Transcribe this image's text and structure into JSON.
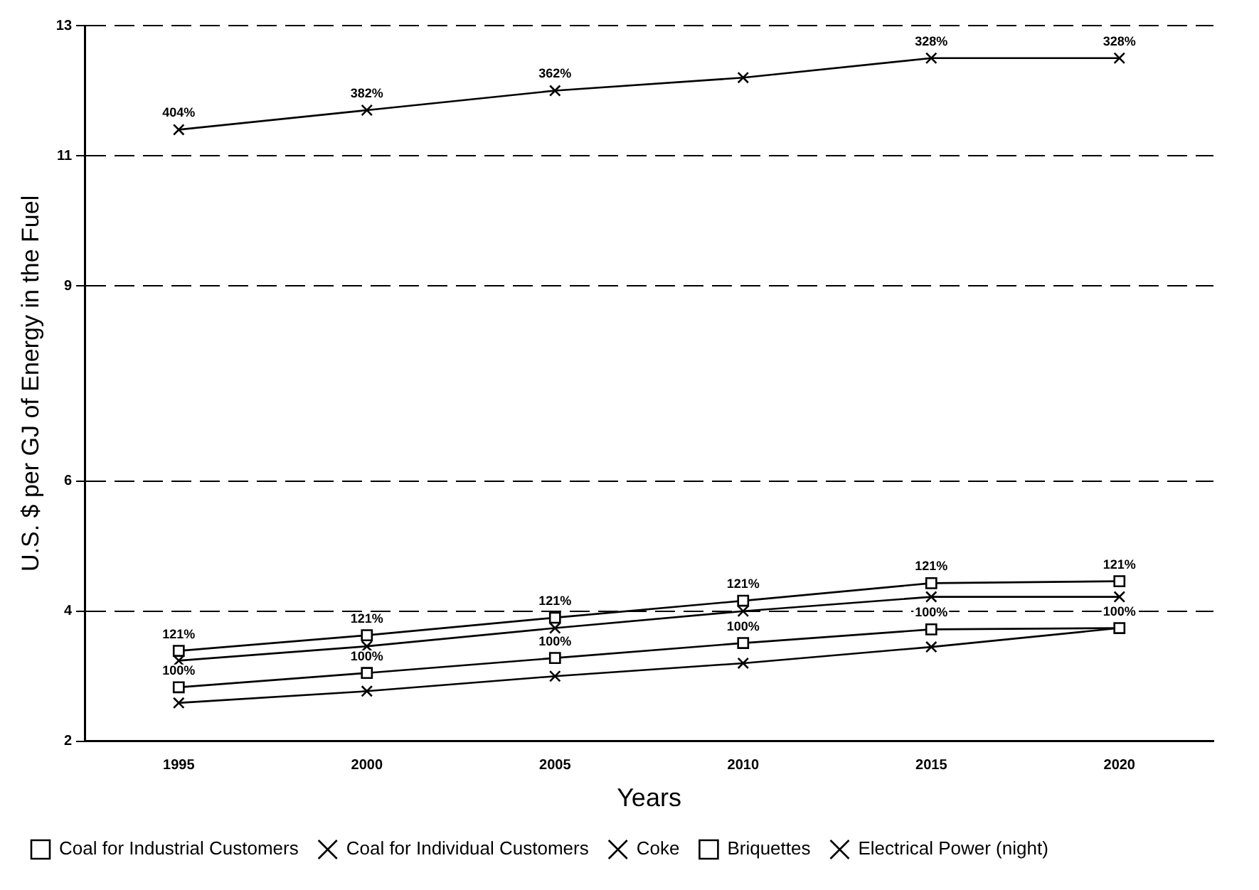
{
  "chart_data": {
    "type": "line",
    "xlabel": "Years",
    "ylabel": "U.S. $ per GJ of Energy in the Fuel",
    "categories": [
      "1995",
      "2000",
      "2005",
      "2010",
      "2015",
      "2020"
    ],
    "ylim": [
      2,
      13
    ],
    "yticks": [
      2,
      4,
      6,
      9,
      11,
      13
    ],
    "grid": "y",
    "legend": "bottom",
    "line_style": "solid",
    "series": [
      {
        "name": "Coal for Industrial Customers",
        "color": "#000000",
        "marker": "square",
        "values": [
          2.83,
          3.05,
          3.28,
          3.51,
          3.72,
          3.74
        ]
      },
      {
        "name": "Coal for Individual Customers",
        "color": "#000000",
        "marker": "cross",
        "values": [
          2.59,
          2.77,
          3.0,
          3.2,
          3.45,
          3.74
        ]
      },
      {
        "name": "Coke",
        "color": "#000000",
        "marker": "cross",
        "values": [
          3.24,
          3.46,
          3.74,
          4.0,
          4.22,
          4.22
        ]
      },
      {
        "name": "Briquettes",
        "color": "#000000",
        "marker": "square",
        "values": [
          3.39,
          3.63,
          3.9,
          4.16,
          4.43,
          4.46
        ]
      },
      {
        "name": "Electrical Power (night)",
        "color": "#000000",
        "marker": "cross",
        "values": [
          11.4,
          11.7,
          12.0,
          12.2,
          12.5,
          12.5
        ]
      }
    ],
    "annotations": [
      {
        "text": "100%",
        "x": "1995",
        "y": 2.83
      },
      {
        "text": "100%",
        "x": "2000",
        "y": 3.05
      },
      {
        "text": "100%",
        "x": "2005",
        "y": 3.28
      },
      {
        "text": "100%",
        "x": "2010",
        "y": 3.51
      },
      {
        "text": "100%",
        "x": "2015",
        "y": 3.72
      },
      {
        "text": "100%",
        "x": "2020",
        "y": 3.74
      },
      {
        "text": "121%",
        "x": "1995",
        "y": 3.39
      },
      {
        "text": "121%",
        "x": "2000",
        "y": 3.63
      },
      {
        "text": "121%",
        "x": "2005",
        "y": 3.9
      },
      {
        "text": "121%",
        "x": "2010",
        "y": 4.16
      },
      {
        "text": "121%",
        "x": "2015",
        "y": 4.43
      },
      {
        "text": "121%",
        "x": "2020",
        "y": 4.46
      },
      {
        "text": "404%",
        "x": "1995",
        "y": 11.4
      },
      {
        "text": "382%",
        "x": "2000",
        "y": 11.7
      },
      {
        "text": "362%",
        "x": "2005",
        "y": 12.0
      },
      {
        "text": "328%",
        "x": "2015",
        "y": 12.5
      },
      {
        "text": "328%",
        "x": "2020",
        "y": 12.5
      }
    ]
  }
}
